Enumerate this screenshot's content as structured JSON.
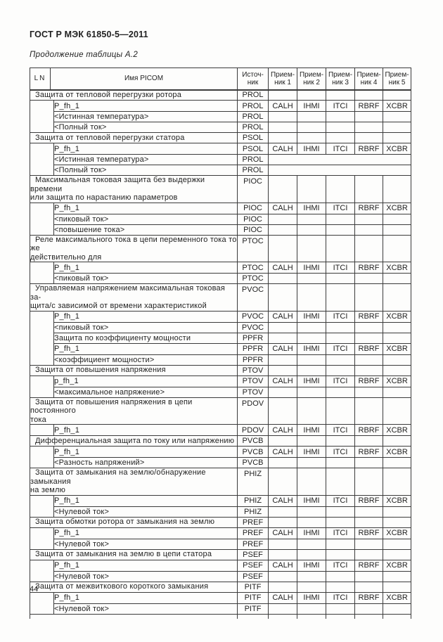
{
  "page": {
    "doc_header": "ГОСТ Р МЭК 61850-5—2011",
    "table_caption": "Продолжение таблицы А.2",
    "page_number": "44"
  },
  "table": {
    "headers": {
      "ln": "LN",
      "picom": "Имя PICOM",
      "source": "Источ-\nник",
      "receivers": [
        "Прием-\nник 1",
        "Прием-\nник 2",
        "Прием-\nник 3",
        "Прием-\nник 4",
        "Прием-\nник 5"
      ]
    },
    "rows": [
      {
        "type": "group",
        "lines": [
          "Защита от тепловой перегрузки ротора"
        ],
        "src": "PROL"
      },
      {
        "type": "sub",
        "text": "P_fh_1",
        "src": "PROL",
        "receivers": [
          "CALH",
          "IHMI",
          "ITCI",
          "RBRF",
          "XCBR"
        ]
      },
      {
        "type": "sub",
        "text": "<Истинная температура>",
        "src": "PROL"
      },
      {
        "type": "sub",
        "text": "<Полный ток>",
        "src": "PROL"
      },
      {
        "type": "group",
        "lines": [
          "Защита от тепловой перегрузки статора"
        ],
        "src": "PSOL"
      },
      {
        "type": "sub",
        "text": "P_fh_1",
        "src": "PSOL",
        "receivers": [
          "CALH",
          "IHMI",
          "ITCI",
          "RBRF",
          "XCBR"
        ]
      },
      {
        "type": "sub",
        "text": "<Истинная температура>",
        "src": "PROL",
        "merged": true
      },
      {
        "type": "sub",
        "text": "<Полный ток>",
        "src": "PROL",
        "merged": true
      },
      {
        "type": "group",
        "lines": [
          "Максимальная токовая защита без выдержки времени",
          "или защита по нарастанию параметров"
        ],
        "src": "PIOC"
      },
      {
        "type": "sub",
        "text": "P_fh_1",
        "src": "PIOC",
        "receivers": [
          "CALH",
          "IHMI",
          "ITCI",
          "RBRF",
          "XCBR"
        ]
      },
      {
        "type": "sub",
        "text": "<пиковый ток>",
        "src": "PIOC"
      },
      {
        "type": "sub",
        "text": "<повышение тока>",
        "src": "PIOC"
      },
      {
        "type": "group",
        "lines": [
          "Реле максимального тока в цепи переменного тока то же",
          "действительно для"
        ],
        "src": "PTOC"
      },
      {
        "type": "sub",
        "text": "P_fh_1",
        "src": "PTOC",
        "receivers": [
          "CALH",
          "IHMI",
          "ITCI",
          "RBRF",
          "XCBR"
        ]
      },
      {
        "type": "sub",
        "text": "<пиковый ток>",
        "src": "PTOC"
      },
      {
        "type": "group",
        "lines": [
          "Управляемая напряжением максимальная токовая за-",
          "щита/с зависимой от времени характеристикой"
        ],
        "src": "PVOC"
      },
      {
        "type": "sub",
        "text": "P_fh_1",
        "src": "PVOC",
        "receivers": [
          "CALH",
          "IHMI",
          "ITCI",
          "RBRF",
          "XCBR"
        ]
      },
      {
        "type": "sub",
        "text": "<пиковый ток>",
        "src": "PVOC"
      },
      {
        "type": "sub",
        "text": "Защита по коэффициенту мощности",
        "src": "PPFR"
      },
      {
        "type": "sub",
        "text": "P_fh_1",
        "src": "PPFR",
        "receivers": [
          "CALH",
          "IHMI",
          "ITCI",
          "RBRF",
          "XCBR"
        ]
      },
      {
        "type": "sub",
        "text": "<коэффициент мощности>",
        "src": "PPFR"
      },
      {
        "type": "group",
        "lines": [
          "Защита от повышения напряжения"
        ],
        "src": "PTOV"
      },
      {
        "type": "sub",
        "text": "p_fh_1",
        "src": "PTOV",
        "receivers": [
          "CALH",
          "IHMI",
          "ITCI",
          "RBRF",
          "XCBR"
        ]
      },
      {
        "type": "sub",
        "text": "<максимальное напряжение>",
        "src": "PTOV"
      },
      {
        "type": "group",
        "lines": [
          "Защита от повышения напряжения в цепи постоянного",
          "тока"
        ],
        "src": "PDOV"
      },
      {
        "type": "sub",
        "text": "P_fh_1",
        "src": "PDOV",
        "receivers": [
          "CALH",
          "IHMI",
          "ITCI",
          "RBRF",
          "XCBR"
        ]
      },
      {
        "type": "group",
        "lines": [
          "Дифференциальная защита по току или напряжению"
        ],
        "src": "PVCB"
      },
      {
        "type": "sub",
        "text": "P_fh_1",
        "src": "PVCB",
        "receivers": [
          "CALH",
          "IHMI",
          "ITCI",
          "RBRF",
          "XCBR"
        ]
      },
      {
        "type": "sub",
        "text": "<Разность напряжений>",
        "src": "PVCB"
      },
      {
        "type": "group",
        "lines": [
          "Защита от замыкания на землю/обнаружение замыкания",
          "на землю"
        ],
        "src": "PHIZ"
      },
      {
        "type": "sub",
        "text": "P_fh_1",
        "src": "PHIZ",
        "receivers": [
          "CALH",
          "IHMI",
          "ITCI",
          "RBRF",
          "XCBR"
        ]
      },
      {
        "type": "sub",
        "text": "<Нулевой ток>",
        "src": "PHIZ"
      },
      {
        "type": "group",
        "lines": [
          "Защита обмотки ротора от замыкания на землю"
        ],
        "src": "PREF"
      },
      {
        "type": "sub",
        "text": "P_fh_1",
        "src": "PREF",
        "receivers": [
          "CALH",
          "IHMI",
          "ITCI",
          "RBRF",
          "XCBR"
        ]
      },
      {
        "type": "sub",
        "text": "<Нулевой ток>",
        "src": "PREF"
      },
      {
        "type": "group",
        "lines": [
          "Защита от замыкания на землю в цепи статора"
        ],
        "src": "PSEF"
      },
      {
        "type": "sub",
        "text": "P_fh_1",
        "src": "PSEF",
        "receivers": [
          "CALH",
          "IHMI",
          "ITCI",
          "RBRF",
          "XCBR"
        ]
      },
      {
        "type": "sub",
        "text": "<Нулевой ток>",
        "src": "PSEF"
      },
      {
        "type": "group",
        "lines": [
          "Защита от межвиткового короткого замыкания"
        ],
        "src": "PITF"
      },
      {
        "type": "sub",
        "text": "P_fh_1",
        "src": "PITF",
        "receivers": [
          "CALH",
          "IHMI",
          "ITCI",
          "RBRF",
          "XCBR"
        ]
      },
      {
        "type": "sub",
        "text": "<Нулевой ток>",
        "src": "PITF"
      }
    ]
  }
}
